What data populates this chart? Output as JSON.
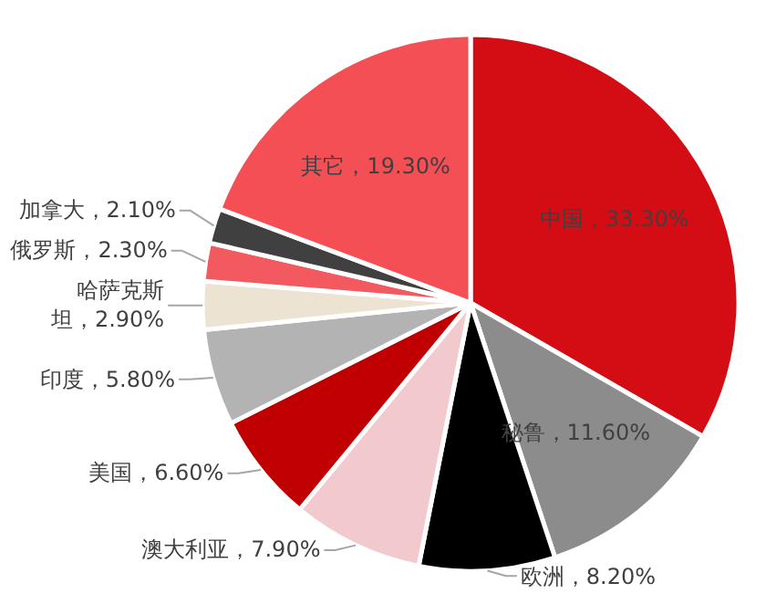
{
  "chart_data": {
    "type": "pie",
    "categories": [
      "中国",
      "秘鲁",
      "欧洲",
      "澳大利亚",
      "美国",
      "印度",
      "哈萨克斯坦",
      "俄罗斯",
      "加拿大",
      "其它"
    ],
    "values": [
      33.3,
      11.6,
      8.2,
      7.9,
      6.6,
      5.8,
      2.9,
      2.3,
      2.1,
      19.3
    ],
    "colors": [
      "#d40c13",
      "#8c8c8c",
      "#000000",
      "#f2c9cc",
      "#c00000",
      "#b3b3b3",
      "#ede3d3",
      "#f25a5f",
      "#404040",
      "#f44f55"
    ],
    "value_labels": [
      "33.30%",
      "11.60%",
      "8.20%",
      "7.90%",
      "6.60%",
      "5.80%",
      "2.90%",
      "2.30%",
      "2.10%",
      "19.30%"
    ]
  }
}
